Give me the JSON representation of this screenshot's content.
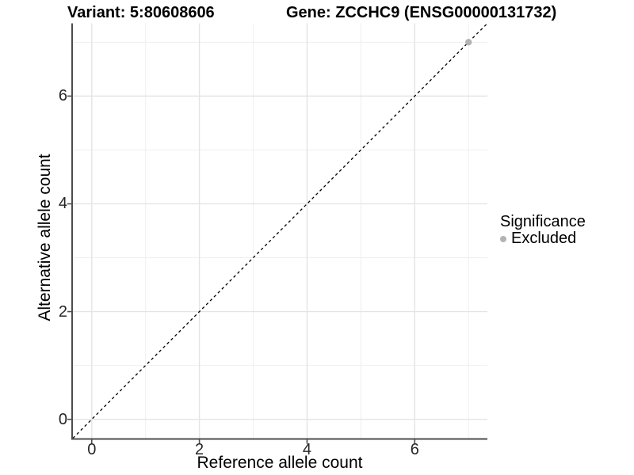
{
  "header": {
    "variant_title": "Variant: 5:80608606",
    "gene_title": "Gene: ZCCHC9 (ENSG00000131732)"
  },
  "chart_data": {
    "type": "scatter",
    "title_left": "Variant: 5:80608606",
    "title_right": "Gene: ZCCHC9 (ENSG00000131732)",
    "xlabel": "Reference allele count",
    "ylabel": "Alternative allele count",
    "xlim": [
      -0.35,
      7.35
    ],
    "ylim": [
      -0.35,
      7.35
    ],
    "x_major_ticks": [
      0,
      2,
      4,
      6
    ],
    "y_major_ticks": [
      0,
      2,
      4,
      6
    ],
    "x_minor_ticks": [
      1,
      3,
      5,
      7
    ],
    "y_minor_ticks": [
      1,
      3,
      5,
      7
    ],
    "grid": "major+minor",
    "reference_line": {
      "kind": "identity y=x",
      "style": "dashed",
      "color": "#000000"
    },
    "series": [
      {
        "name": "Excluded",
        "color": "#b3b3b3",
        "points": [
          {
            "x": 7,
            "y": 7
          }
        ]
      }
    ],
    "legend": {
      "title": "Significance",
      "position": "right",
      "items": [
        {
          "label": "Excluded",
          "color": "#b3b3b3"
        }
      ]
    },
    "style_colors": {
      "grid_major": "#e4e4e4",
      "grid_minor": "#efefef",
      "axis_line": "#4d4d4d",
      "tick_text": "#262626"
    }
  }
}
